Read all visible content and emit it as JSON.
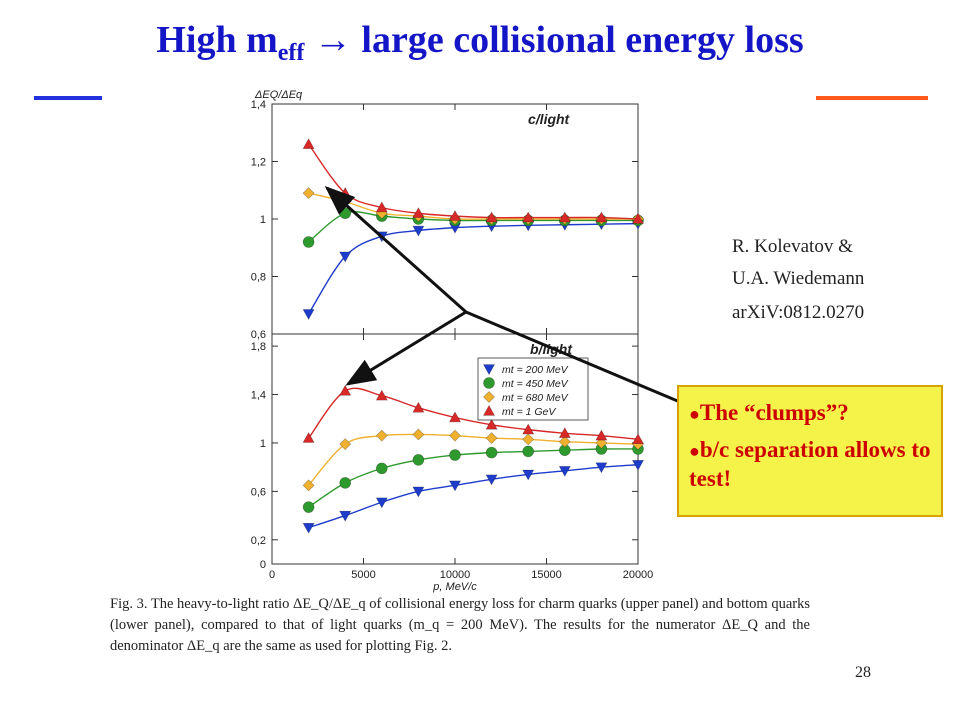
{
  "slide": {
    "title_main": "High m",
    "title_sub": "eff",
    "title_arrow": "→",
    "title_rest": "large collisional energy loss",
    "page_number": "28"
  },
  "reference": {
    "line1": "R. Kolevatov &",
    "line2": "U.A. Wiedemann",
    "line3": "arXiV:0812.0270"
  },
  "callout": {
    "bullet": "●",
    "item1": "The “clumps”?",
    "item2": "b/c separation allows to test!"
  },
  "caption": {
    "text": "Fig. 3.    The heavy-to-light ratio ΔE_Q/ΔE_q of collisional energy loss for charm quarks (upper panel) and bottom quarks (lower panel), compared to that of light quarks (m_q = 200 MeV). The results for the numerator ΔE_Q and the denominator ΔE_q are the same as used for plotting Fig. 2."
  },
  "colors": {
    "title": "#1515c8",
    "callout_bg": "#f5f24a",
    "callout_text": "#cc0000",
    "series": [
      "#1e3ccc",
      "#2e9a2e",
      "#f0b030",
      "#d82828"
    ]
  },
  "chart_data": [
    {
      "type": "line",
      "panel": "upper",
      "label": "c/light",
      "ylabel": "ΔEQ/ΔEq",
      "xlabel": "p, MeV/c",
      "xlim": [
        0,
        20000
      ],
      "ylim": [
        0.6,
        1.4
      ],
      "yticks": [
        "0,6",
        "0,8",
        "1",
        "1,2",
        "1,4"
      ],
      "x": [
        2000,
        4000,
        6000,
        8000,
        10000,
        12000,
        14000,
        16000,
        18000,
        20000
      ],
      "series": [
        {
          "name": "mt = 200 MeV",
          "marker": "triangle-down",
          "values": [
            0.67,
            0.87,
            0.94,
            0.96,
            0.97,
            0.975,
            0.978,
            0.98,
            0.982,
            0.984
          ]
        },
        {
          "name": "mt = 450 MeV",
          "marker": "circle",
          "values": [
            0.92,
            1.02,
            1.01,
            1.0,
            0.995,
            0.995,
            0.995,
            0.995,
            0.995,
            0.995
          ]
        },
        {
          "name": "mt = 680 MeV",
          "marker": "diamond",
          "values": [
            1.09,
            1.06,
            1.02,
            1.01,
            1.0,
            1.0,
            1.0,
            1.0,
            1.0,
            1.0
          ]
        },
        {
          "name": "mt = 1 GeV",
          "marker": "triangle-up",
          "values": [
            1.26,
            1.09,
            1.04,
            1.02,
            1.01,
            1.005,
            1.005,
            1.005,
            1.005,
            1.0
          ]
        }
      ]
    },
    {
      "type": "line",
      "panel": "lower",
      "label": "b/light",
      "ylabel": "",
      "xlabel": "p, MeV/c",
      "xlim": [
        0,
        20000
      ],
      "ylim": [
        0,
        1.9
      ],
      "xticks": [
        "0",
        "5000",
        "10000",
        "15000",
        "20000"
      ],
      "yticks": [
        "0",
        "0,2",
        "0,6",
        "1",
        "1,4",
        "1,8"
      ],
      "legend_position": "top-center",
      "x": [
        2000,
        4000,
        6000,
        8000,
        10000,
        12000,
        14000,
        16000,
        18000,
        20000
      ],
      "series": [
        {
          "name": "mt = 200 MeV",
          "marker": "triangle-down",
          "values": [
            0.3,
            0.4,
            0.51,
            0.6,
            0.65,
            0.7,
            0.74,
            0.77,
            0.8,
            0.82
          ]
        },
        {
          "name": "mt = 450 MeV",
          "marker": "circle",
          "values": [
            0.47,
            0.67,
            0.79,
            0.86,
            0.9,
            0.92,
            0.93,
            0.94,
            0.95,
            0.95
          ]
        },
        {
          "name": "mt = 680 MeV",
          "marker": "diamond",
          "values": [
            0.65,
            0.99,
            1.06,
            1.07,
            1.06,
            1.04,
            1.03,
            1.01,
            1.0,
            0.99
          ]
        },
        {
          "name": "mt = 1 GeV",
          "marker": "triangle-up",
          "values": [
            1.04,
            1.43,
            1.39,
            1.29,
            1.21,
            1.15,
            1.11,
            1.08,
            1.06,
            1.03
          ]
        }
      ]
    }
  ]
}
